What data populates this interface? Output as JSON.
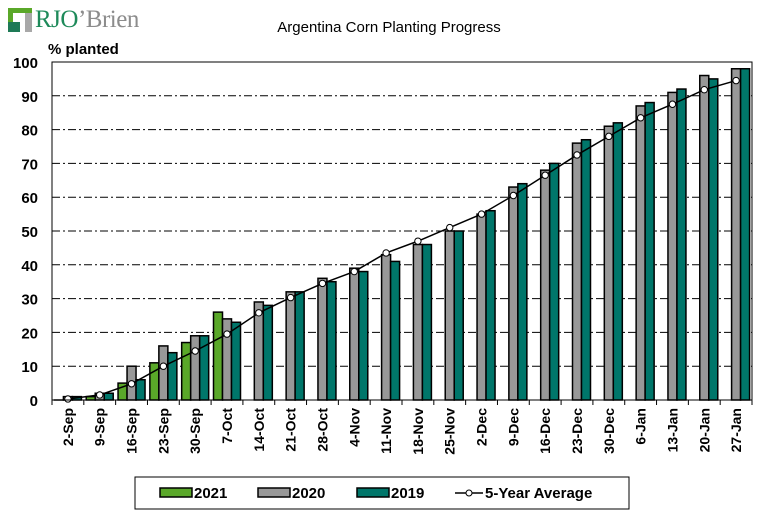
{
  "logo": {
    "brand_prefix": "RJO",
    "brand_suffix": "’Brien"
  },
  "chart_data": {
    "type": "bar",
    "title": "Argentina Corn Planting Progress",
    "xlabel": "",
    "ylabel": "% planted",
    "ylim": [
      0,
      100
    ],
    "yticks": [
      0,
      10,
      20,
      30,
      40,
      50,
      60,
      70,
      80,
      90,
      100
    ],
    "grid": true,
    "legend_position": "bottom",
    "categories": [
      "2-Sep",
      "9-Sep",
      "16-Sep",
      "23-Sep",
      "30-Sep",
      "7-Oct",
      "14-Oct",
      "21-Oct",
      "28-Oct",
      "4-Nov",
      "11-Nov",
      "18-Nov",
      "25-Nov",
      "2-Dec",
      "9-Dec",
      "16-Dec",
      "23-Dec",
      "30-Dec",
      "6-Jan",
      "13-Jan",
      "20-Jan",
      "27-Jan"
    ],
    "series": [
      {
        "name": "2021",
        "type": "bar",
        "color": "#5aa829",
        "values": [
          0,
          1,
          5,
          11,
          17,
          26,
          null,
          null,
          null,
          null,
          null,
          null,
          null,
          null,
          null,
          null,
          null,
          null,
          null,
          null,
          null,
          null
        ]
      },
      {
        "name": "2020",
        "type": "bar",
        "color": "#989898",
        "values": [
          1,
          2,
          10,
          16,
          19,
          24,
          29,
          32,
          36,
          39,
          43,
          46,
          50,
          55,
          63,
          68,
          76,
          81,
          87,
          91,
          96,
          98
        ]
      },
      {
        "name": "2019",
        "type": "bar",
        "color": "#00766a",
        "values": [
          1,
          2,
          6,
          14,
          19,
          23,
          28,
          32,
          35,
          38,
          41,
          46,
          50,
          56,
          64,
          70,
          77,
          82,
          88,
          92,
          95,
          98
        ]
      },
      {
        "name": "5-Year Average",
        "type": "line",
        "color": "#000000",
        "values": [
          0.3,
          1.5,
          4.8,
          10,
          14.5,
          19.5,
          25.8,
          30.3,
          34.5,
          38,
          43.5,
          47,
          51,
          55,
          60.5,
          66.5,
          72.5,
          78,
          83.5,
          87.5,
          91.8,
          94.5
        ]
      }
    ]
  }
}
